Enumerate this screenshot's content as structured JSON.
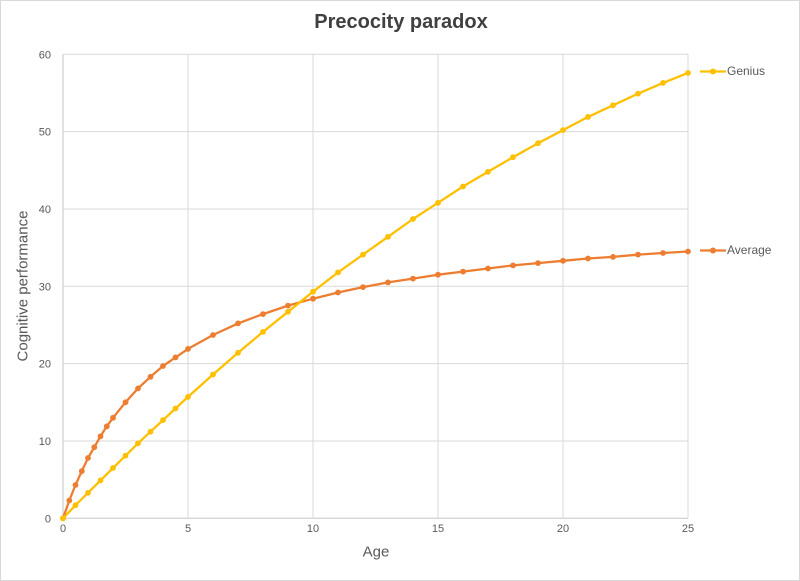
{
  "chart_data": {
    "type": "line",
    "title": "Precocity paradox",
    "xlabel": "Age",
    "ylabel": "Cognitive performance",
    "xlim": [
      0,
      25
    ],
    "ylim": [
      0,
      60
    ],
    "x_ticks": [
      0,
      5,
      10,
      15,
      20,
      25
    ],
    "y_ticks": [
      0,
      10,
      20,
      30,
      40,
      50,
      60
    ],
    "grid": true,
    "legend_position": "labels-at-line-ends-right",
    "series": [
      {
        "name": "Average",
        "color": "#ED7D31",
        "x": [
          0,
          0.25,
          0.5,
          0.75,
          1,
          1.25,
          1.5,
          1.75,
          2,
          2.5,
          3,
          3.5,
          4,
          4.5,
          5,
          6,
          7,
          8,
          9,
          10,
          11,
          12,
          13,
          14,
          15,
          16,
          17,
          18,
          19,
          20,
          21,
          22,
          23,
          24,
          25
        ],
        "y": [
          0,
          2.3,
          4.3,
          6.1,
          7.8,
          9.2,
          10.6,
          11.9,
          13.0,
          15.0,
          16.8,
          18.3,
          19.7,
          20.8,
          21.9,
          23.7,
          25.2,
          26.4,
          27.5,
          28.4,
          29.2,
          29.9,
          30.5,
          31.0,
          31.5,
          31.9,
          32.3,
          32.7,
          33.0,
          33.3,
          33.6,
          33.8,
          34.1,
          34.3,
          34.5
        ]
      },
      {
        "name": "Genius",
        "color": "#FFC000",
        "x": [
          0,
          0.5,
          1,
          1.5,
          2,
          2.5,
          3,
          3.5,
          4,
          4.5,
          5,
          6,
          7,
          8,
          9,
          10,
          11,
          12,
          13,
          14,
          15,
          16,
          17,
          18,
          19,
          20,
          21,
          22,
          23,
          24,
          25
        ],
        "y": [
          0,
          1.7,
          3.3,
          4.9,
          6.5,
          8.1,
          9.7,
          11.2,
          12.7,
          14.2,
          15.7,
          18.6,
          21.4,
          24.1,
          26.7,
          29.3,
          31.8,
          34.1,
          36.4,
          38.7,
          40.8,
          42.9,
          44.8,
          46.7,
          48.5,
          50.2,
          51.9,
          53.4,
          54.9,
          56.3,
          57.6
        ]
      }
    ]
  },
  "colors": {
    "grid": "#D9D9D9",
    "axis_line": "#C6C6C6",
    "tick_text": "#595959",
    "axis_title_text": "#595959",
    "title_text": "#404040",
    "series_label_text": "#595959"
  },
  "labels": {
    "genius": "Genius",
    "average": "Average"
  }
}
